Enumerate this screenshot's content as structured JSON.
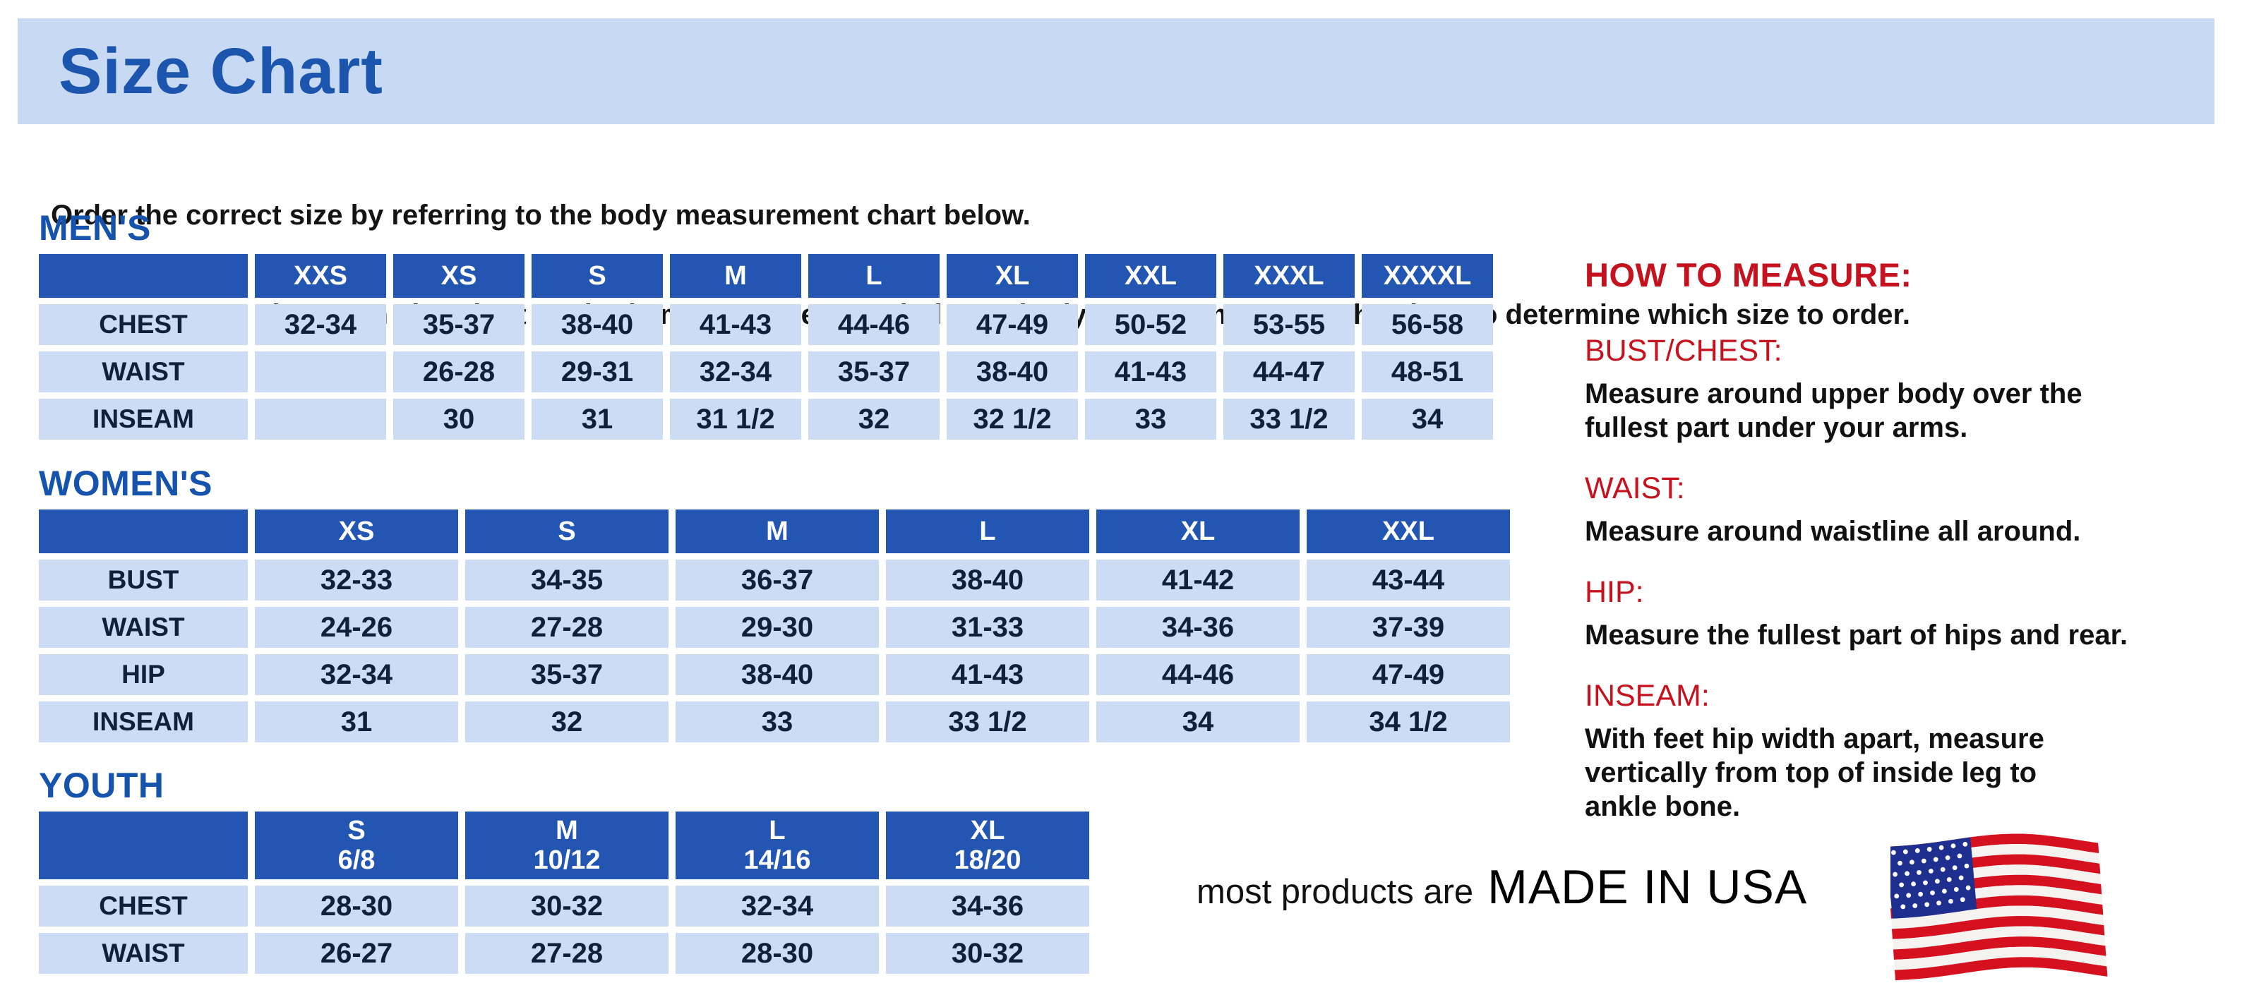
{
  "title": "Size Chart",
  "intro": {
    "line1": "Order the correct size by referring to the body measurement chart below.",
    "line2": "Measurements shown on size chart are body measurements.  Find your body measurements on the chart to determine which size to order."
  },
  "tables": [
    {
      "id": "mens",
      "heading": "MEN'S",
      "columns": [
        "XXS",
        "XS",
        "S",
        "M",
        "L",
        "XL",
        "XXL",
        "XXXL",
        "XXXXL"
      ],
      "rows": [
        {
          "label": "CHEST",
          "values": [
            "32-34",
            "35-37",
            "38-40",
            "41-43",
            "44-46",
            "47-49",
            "50-52",
            "53-55",
            "56-58"
          ]
        },
        {
          "label": "WAIST",
          "values": [
            "",
            "26-28",
            "29-31",
            "32-34",
            "35-37",
            "38-40",
            "41-43",
            "44-47",
            "48-51"
          ]
        },
        {
          "label": "INSEAM",
          "values": [
            "",
            "30",
            "31",
            "31 1/2",
            "32",
            "32 1/2",
            "33",
            "33 1/2",
            "34"
          ]
        }
      ]
    },
    {
      "id": "womens",
      "heading": "WOMEN'S",
      "columns": [
        "XS",
        "S",
        "M",
        "L",
        "XL",
        "XXL"
      ],
      "rows": [
        {
          "label": "BUST",
          "values": [
            "32-33",
            "34-35",
            "36-37",
            "38-40",
            "41-42",
            "43-44"
          ]
        },
        {
          "label": "WAIST",
          "values": [
            "24-26",
            "27-28",
            "29-30",
            "31-33",
            "34-36",
            "37-39"
          ]
        },
        {
          "label": "HIP",
          "values": [
            "32-34",
            "35-37",
            "38-40",
            "41-43",
            "44-46",
            "47-49"
          ]
        },
        {
          "label": "INSEAM",
          "values": [
            "31",
            "32",
            "33",
            "33 1/2",
            "34",
            "34 1/2"
          ]
        }
      ]
    },
    {
      "id": "youth",
      "heading": "YOUTH",
      "columns": [
        {
          "size": "S",
          "range": "6/8"
        },
        {
          "size": "M",
          "range": "10/12"
        },
        {
          "size": "L",
          "range": "14/16"
        },
        {
          "size": "XL",
          "range": "18/20"
        }
      ],
      "rows": [
        {
          "label": "CHEST",
          "values": [
            "28-30",
            "30-32",
            "32-34",
            "34-36"
          ]
        },
        {
          "label": "WAIST",
          "values": [
            "26-27",
            "27-28",
            "28-30",
            "30-32"
          ]
        }
      ]
    }
  ],
  "how_to_measure": {
    "heading": "HOW TO MEASURE:",
    "items": [
      {
        "label": "BUST/CHEST:",
        "text": "Measure around upper body over the\nfullest part under your arms."
      },
      {
        "label": "WAIST:",
        "text": "Measure around waistline all around."
      },
      {
        "label": "HIP:",
        "text": "Measure the fullest part of hips and rear."
      },
      {
        "label": "INSEAM:",
        "text": "With feet hip width apart, measure\nvertically from top of inside leg to\nankle bone."
      }
    ]
  },
  "footer": {
    "prefix": "most products are",
    "emphasis": "MADE IN USA",
    "flag_icon": "usa-flag-icon"
  },
  "colors": {
    "band_blue": "#c8daf3",
    "heading_blue": "#1b55ae",
    "table_header_blue": "#2355b2",
    "cell_blue": "#ccdcf4",
    "cell_text_navy": "#101f3a",
    "accent_red": "#c5121e",
    "flag_red": "#d5101f",
    "flag_blue": "#1f2f8f"
  }
}
